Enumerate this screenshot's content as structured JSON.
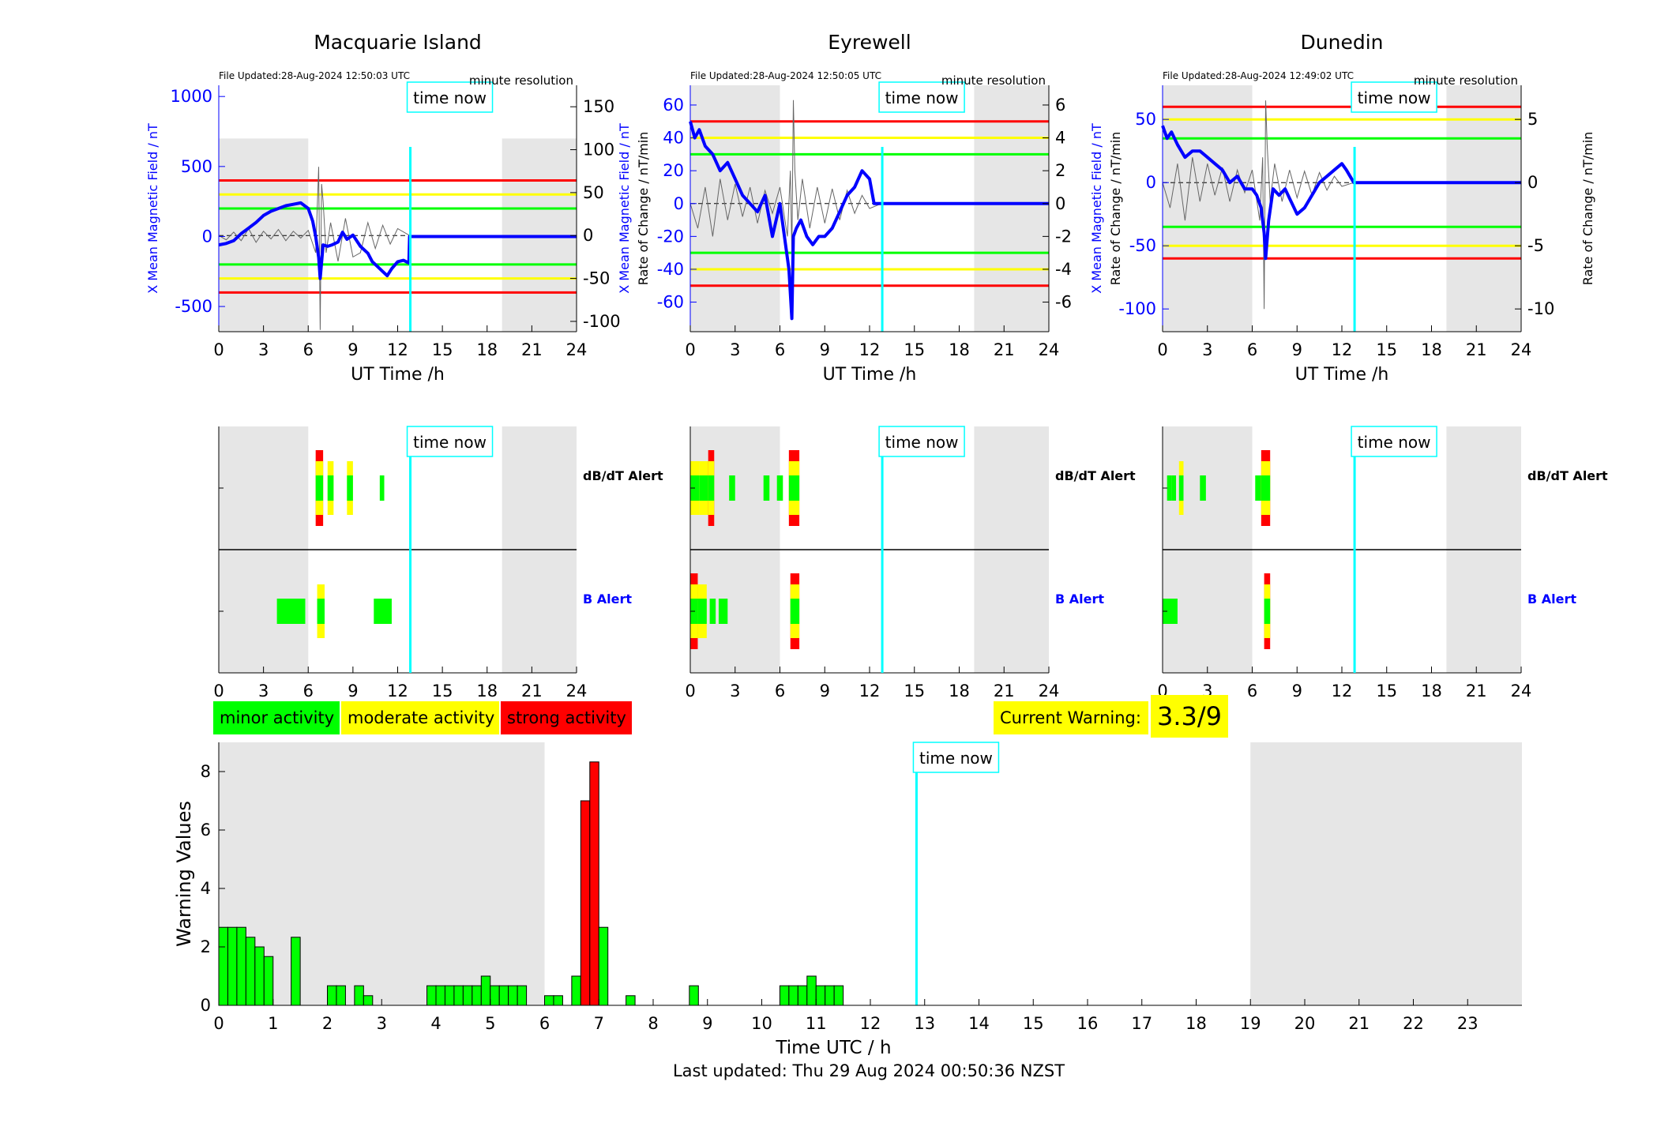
{
  "colors": {
    "minor": "#00ff00",
    "moderate": "#ffff00",
    "strong": "#ff0000",
    "field": "#0000ff",
    "time_now": "#00ffff",
    "night_shade": "#e6e6e6",
    "current_warning_bg": "#ffff00"
  },
  "common": {
    "x_ticks": [
      0,
      3,
      6,
      9,
      12,
      15,
      18,
      21,
      24
    ],
    "x_label": "UT Time /h",
    "time_now_label": "time now",
    "time_now_h": 12.85,
    "resolution_label": "minute resolution",
    "dbdt_alert_label": "dB/dT Alert",
    "b_alert_label": "B Alert"
  },
  "legend": {
    "minor": "minor activity",
    "moderate": "moderate activity",
    "strong": "strong activity"
  },
  "current_warning": {
    "label": "Current Warning:",
    "value": "3.3/9"
  },
  "footer": "Last updated: Thu 29 Aug 2024 00:50:36 NZST",
  "chart_data": [
    {
      "type": "line",
      "title": "Macquarie Island",
      "file_updated": "File Updated:28-Aug-2024 12:50:03 UTC",
      "ylabel_left": "X Mean Magnetic Field / nT",
      "ylabel_right": "Rate of Change / nT/min",
      "ylim_left": [
        -680,
        1080
      ],
      "yticks_left": [
        -500,
        0,
        500,
        1000
      ],
      "ylim_right": [
        -112,
        175
      ],
      "yticks_right": [
        -100,
        -50,
        0,
        50,
        100,
        150
      ],
      "thresholds_left": [
        {
          "y": 400,
          "c": "strong"
        },
        {
          "y": 300,
          "c": "moderate"
        },
        {
          "y": 200,
          "c": "minor"
        },
        {
          "y": -200,
          "c": "minor"
        },
        {
          "y": -300,
          "c": "moderate"
        },
        {
          "y": -400,
          "c": "strong"
        }
      ],
      "night_shade": [
        [
          0,
          6
        ],
        [
          19,
          24
        ]
      ],
      "shade_ylim_left": [
        -680,
        700
      ],
      "x_field": [
        0,
        0.5,
        1,
        1.5,
        2,
        2.5,
        3,
        3.5,
        4,
        4.5,
        5,
        5.5,
        6,
        6.3,
        6.5,
        6.7,
        6.8,
        7,
        7.3,
        7.6,
        8,
        8.3,
        8.6,
        9,
        9.5,
        10,
        10.3,
        10.6,
        11,
        11.3,
        11.6,
        12,
        12.4,
        12.75,
        12.8,
        24
      ],
      "y_field": [
        -60,
        -50,
        -30,
        20,
        60,
        100,
        150,
        180,
        200,
        220,
        230,
        240,
        200,
        110,
        0,
        -150,
        -300,
        -60,
        -70,
        -60,
        -40,
        30,
        -20,
        10,
        -70,
        -120,
        -180,
        -210,
        -250,
        -280,
        -230,
        -180,
        -170,
        -190,
        0,
        0
      ],
      "x_rate": [
        0,
        0.5,
        1,
        1.5,
        2,
        2.5,
        3,
        3.5,
        4,
        4.5,
        5,
        5.5,
        6,
        6.5,
        6.7,
        6.8,
        6.9,
        7,
        7.2,
        7.5,
        8,
        8.5,
        9,
        9.5,
        10,
        10.5,
        11,
        11.5,
        12,
        12.8
      ],
      "y_rate": [
        0,
        -5,
        4,
        -6,
        8,
        -8,
        5,
        -4,
        7,
        -6,
        5,
        -3,
        6,
        -20,
        80,
        -110,
        60,
        40,
        -20,
        15,
        -30,
        20,
        -25,
        -20,
        15,
        -15,
        12,
        -10,
        8,
        0
      ]
    },
    {
      "type": "line",
      "title": "Eyrewell",
      "file_updated": "File Updated:28-Aug-2024 12:50:05 UTC",
      "ylabel_left": "X Mean Magnetic Field / nT",
      "ylabel_right": "Rate of Change / nT/min",
      "ylim_left": [
        -78,
        72
      ],
      "yticks_left": [
        -60,
        -40,
        -20,
        0,
        20,
        40,
        60
      ],
      "ylim_right": [
        -7.8,
        7.2
      ],
      "yticks_right": [
        -6,
        -4,
        -2,
        0,
        2,
        4,
        6
      ],
      "thresholds_left": [
        {
          "y": 50,
          "c": "strong"
        },
        {
          "y": 40,
          "c": "moderate"
        },
        {
          "y": 30,
          "c": "minor"
        },
        {
          "y": -30,
          "c": "minor"
        },
        {
          "y": -40,
          "c": "moderate"
        },
        {
          "y": -50,
          "c": "strong"
        }
      ],
      "night_shade": [
        [
          0,
          6
        ],
        [
          19,
          24
        ]
      ],
      "shade_ylim_left": [
        -78,
        72
      ],
      "x_field": [
        0,
        0.3,
        0.6,
        1,
        1.5,
        2,
        2.5,
        3,
        3.5,
        4,
        4.5,
        5,
        5.5,
        6,
        6.3,
        6.6,
        6.8,
        6.9,
        7.1,
        7.4,
        7.8,
        8.2,
        8.6,
        9,
        9.5,
        10,
        10.5,
        11,
        11.5,
        12,
        12.3,
        12.8,
        24
      ],
      "y_field": [
        50,
        40,
        45,
        35,
        30,
        20,
        25,
        15,
        5,
        0,
        -5,
        5,
        -20,
        0,
        -20,
        -40,
        -70,
        -20,
        -15,
        -10,
        -20,
        -25,
        -20,
        -20,
        -15,
        -5,
        5,
        10,
        20,
        15,
        0,
        0,
        0
      ],
      "x_rate": [
        0,
        0.5,
        1,
        1.5,
        2,
        2.5,
        3,
        3.5,
        4,
        4.5,
        5,
        5.5,
        6,
        6.5,
        6.7,
        6.8,
        6.9,
        7,
        7.2,
        7.5,
        8,
        8.5,
        9,
        9.5,
        10,
        10.5,
        11,
        11.5,
        12,
        12.8
      ],
      "y_rate": [
        0,
        -1.5,
        1,
        -2,
        1.5,
        -1,
        1.2,
        -0.8,
        1,
        -1.2,
        0.8,
        -0.6,
        1,
        -2,
        2,
        -3,
        6.3,
        2,
        -1,
        1.5,
        -1.5,
        1,
        -1.2,
        0.9,
        -1,
        0.8,
        -0.6,
        0.5,
        -0.3,
        0
      ]
    },
    {
      "type": "line",
      "title": "Dunedin",
      "file_updated": "File Updated:28-Aug-2024 12:49:02 UTC",
      "ylabel_left": "X Mean Magnetic Field / nT",
      "ylabel_right": "Rate of Change / nT/min",
      "ylim_left": [
        -118,
        77
      ],
      "yticks_left": [
        -100,
        -50,
        0,
        50
      ],
      "ylim_right": [
        -11.8,
        7.7
      ],
      "yticks_right": [
        -10,
        -5,
        0,
        5
      ],
      "thresholds_left": [
        {
          "y": 60,
          "c": "strong"
        },
        {
          "y": 50,
          "c": "moderate"
        },
        {
          "y": 35,
          "c": "minor"
        },
        {
          "y": -35,
          "c": "minor"
        },
        {
          "y": -50,
          "c": "moderate"
        },
        {
          "y": -60,
          "c": "strong"
        }
      ],
      "night_shade": [
        [
          0,
          6
        ],
        [
          19,
          24
        ]
      ],
      "shade_ylim_left": [
        -118,
        77
      ],
      "x_field": [
        0,
        0.3,
        0.6,
        1,
        1.5,
        2,
        2.5,
        3,
        3.5,
        4,
        4.5,
        5,
        5.5,
        6,
        6.3,
        6.6,
        6.8,
        6.9,
        7.1,
        7.4,
        7.8,
        8.2,
        8.6,
        9,
        9.5,
        10,
        10.5,
        11,
        11.5,
        12,
        12.3,
        12.8,
        24
      ],
      "y_field": [
        45,
        35,
        40,
        30,
        20,
        25,
        25,
        20,
        15,
        10,
        0,
        5,
        -5,
        -5,
        -10,
        -20,
        -40,
        -60,
        -30,
        -5,
        -10,
        -5,
        -15,
        -25,
        -20,
        -10,
        0,
        5,
        10,
        15,
        10,
        0,
        0
      ],
      "x_rate": [
        0,
        0.5,
        1,
        1.5,
        2,
        2.5,
        3,
        3.5,
        4,
        4.5,
        5,
        5.5,
        6,
        6.5,
        6.7,
        6.8,
        6.9,
        7,
        7.2,
        7.5,
        8,
        8.5,
        9,
        9.5,
        10,
        10.5,
        11,
        11.5,
        12,
        12.8
      ],
      "y_rate": [
        0,
        -2,
        1.5,
        -3,
        2,
        -1.5,
        1.5,
        -1,
        1.2,
        -1.5,
        1,
        -0.8,
        1,
        -3,
        2,
        -10,
        6.5,
        3,
        -1.5,
        1.5,
        -1.5,
        1,
        -1.2,
        0.9,
        -1,
        0.8,
        -0.6,
        0.5,
        -0.3,
        0
      ]
    },
    {
      "type": "bar",
      "xlabel": "Time UTC / h",
      "ylabel": "Warning Values",
      "xlim": [
        0,
        24
      ],
      "ylim": [
        0,
        9
      ],
      "xticks": [
        0,
        1,
        2,
        3,
        4,
        5,
        6,
        7,
        8,
        9,
        10,
        11,
        12,
        13,
        14,
        15,
        16,
        17,
        18,
        19,
        20,
        21,
        22,
        23
      ],
      "yticks": [
        0,
        2,
        4,
        6,
        8
      ],
      "night_shade": [
        [
          0,
          6
        ],
        [
          19,
          24
        ]
      ],
      "bar_width_h": 0.1667,
      "bars": [
        {
          "x": 0.0,
          "v": 2.67,
          "c": "minor"
        },
        {
          "x": 0.1667,
          "v": 2.67,
          "c": "minor"
        },
        {
          "x": 0.3333,
          "v": 2.67,
          "c": "minor"
        },
        {
          "x": 0.5,
          "v": 2.33,
          "c": "minor"
        },
        {
          "x": 0.6667,
          "v": 2.0,
          "c": "minor"
        },
        {
          "x": 0.8333,
          "v": 1.67,
          "c": "minor"
        },
        {
          "x": 1.3333,
          "v": 2.33,
          "c": "minor"
        },
        {
          "x": 2.0,
          "v": 0.67,
          "c": "minor"
        },
        {
          "x": 2.1667,
          "v": 0.67,
          "c": "minor"
        },
        {
          "x": 2.5,
          "v": 0.67,
          "c": "minor"
        },
        {
          "x": 2.6667,
          "v": 0.33,
          "c": "minor"
        },
        {
          "x": 3.8333,
          "v": 0.67,
          "c": "minor"
        },
        {
          "x": 4.0,
          "v": 0.67,
          "c": "minor"
        },
        {
          "x": 4.1667,
          "v": 0.67,
          "c": "minor"
        },
        {
          "x": 4.3333,
          "v": 0.67,
          "c": "minor"
        },
        {
          "x": 4.5,
          "v": 0.67,
          "c": "minor"
        },
        {
          "x": 4.6667,
          "v": 0.67,
          "c": "minor"
        },
        {
          "x": 4.8333,
          "v": 1.0,
          "c": "minor"
        },
        {
          "x": 5.0,
          "v": 0.67,
          "c": "minor"
        },
        {
          "x": 5.1667,
          "v": 0.67,
          "c": "minor"
        },
        {
          "x": 5.3333,
          "v": 0.67,
          "c": "minor"
        },
        {
          "x": 5.5,
          "v": 0.67,
          "c": "minor"
        },
        {
          "x": 6.0,
          "v": 0.33,
          "c": "minor"
        },
        {
          "x": 6.1667,
          "v": 0.33,
          "c": "minor"
        },
        {
          "x": 6.5,
          "v": 1.0,
          "c": "minor"
        },
        {
          "x": 6.6667,
          "v": 7.0,
          "c": "strong"
        },
        {
          "x": 6.8333,
          "v": 8.33,
          "c": "strong"
        },
        {
          "x": 7.0,
          "v": 2.67,
          "c": "minor"
        },
        {
          "x": 7.5,
          "v": 0.33,
          "c": "minor"
        },
        {
          "x": 8.6667,
          "v": 0.67,
          "c": "minor"
        },
        {
          "x": 10.3333,
          "v": 0.67,
          "c": "minor"
        },
        {
          "x": 10.5,
          "v": 0.67,
          "c": "minor"
        },
        {
          "x": 10.6667,
          "v": 0.67,
          "c": "minor"
        },
        {
          "x": 10.8333,
          "v": 1.0,
          "c": "minor"
        },
        {
          "x": 11.0,
          "v": 0.67,
          "c": "minor"
        },
        {
          "x": 11.1667,
          "v": 0.67,
          "c": "minor"
        },
        {
          "x": 11.3333,
          "v": 0.67,
          "c": "minor"
        }
      ]
    }
  ],
  "alert_data": [
    {
      "station": "Macquarie Island",
      "dbdt": [
        {
          "x0": 6.5,
          "x1": 7.0,
          "levels": [
            "minor",
            "moderate",
            "strong"
          ]
        },
        {
          "x0": 7.3,
          "x1": 7.7,
          "levels": [
            "minor",
            "moderate"
          ]
        },
        {
          "x0": 8.6,
          "x1": 9.0,
          "levels": [
            "minor",
            "moderate"
          ]
        },
        {
          "x0": 10.8,
          "x1": 11.1,
          "levels": [
            "minor"
          ]
        }
      ],
      "b": [
        {
          "x0": 3.9,
          "x1": 5.8,
          "levels": [
            "minor"
          ]
        },
        {
          "x0": 6.6,
          "x1": 7.1,
          "levels": [
            "minor",
            "moderate"
          ]
        },
        {
          "x0": 10.4,
          "x1": 11.6,
          "levels": [
            "minor"
          ]
        }
      ]
    },
    {
      "station": "Eyrewell",
      "dbdt": [
        {
          "x0": 0.0,
          "x1": 0.6,
          "levels": [
            "minor",
            "moderate"
          ]
        },
        {
          "x0": 0.6,
          "x1": 1.2,
          "levels": [
            "minor",
            "moderate"
          ]
        },
        {
          "x0": 1.2,
          "x1": 1.6,
          "levels": [
            "minor",
            "moderate",
            "strong"
          ]
        },
        {
          "x0": 2.6,
          "x1": 3.0,
          "levels": [
            "minor"
          ]
        },
        {
          "x0": 4.9,
          "x1": 5.3,
          "levels": [
            "minor"
          ]
        },
        {
          "x0": 5.8,
          "x1": 6.2,
          "levels": [
            "minor"
          ]
        },
        {
          "x0": 6.6,
          "x1": 7.3,
          "levels": [
            "minor",
            "moderate",
            "strong"
          ]
        }
      ],
      "b": [
        {
          "x0": 0.0,
          "x1": 0.5,
          "levels": [
            "minor",
            "moderate",
            "strong"
          ]
        },
        {
          "x0": 0.5,
          "x1": 1.1,
          "levels": [
            "minor",
            "moderate"
          ]
        },
        {
          "x0": 1.3,
          "x1": 1.7,
          "levels": [
            "minor"
          ]
        },
        {
          "x0": 1.9,
          "x1": 2.5,
          "levels": [
            "minor"
          ]
        },
        {
          "x0": 6.7,
          "x1": 7.3,
          "levels": [
            "minor",
            "moderate",
            "strong"
          ]
        }
      ]
    },
    {
      "station": "Dunedin",
      "dbdt": [
        {
          "x0": 0.3,
          "x1": 0.6,
          "levels": [
            "minor"
          ]
        },
        {
          "x0": 0.6,
          "x1": 0.9,
          "levels": [
            "minor"
          ]
        },
        {
          "x0": 1.1,
          "x1": 1.4,
          "levels": [
            "minor",
            "moderate"
          ]
        },
        {
          "x0": 2.5,
          "x1": 2.9,
          "levels": [
            "minor"
          ]
        },
        {
          "x0": 6.2,
          "x1": 6.6,
          "levels": [
            "minor"
          ]
        },
        {
          "x0": 6.6,
          "x1": 7.2,
          "levels": [
            "minor",
            "moderate",
            "strong"
          ]
        }
      ],
      "b": [
        {
          "x0": 0.0,
          "x1": 1.0,
          "levels": [
            "minor"
          ]
        },
        {
          "x0": 6.8,
          "x1": 7.2,
          "levels": [
            "minor",
            "moderate",
            "strong"
          ]
        }
      ]
    }
  ]
}
